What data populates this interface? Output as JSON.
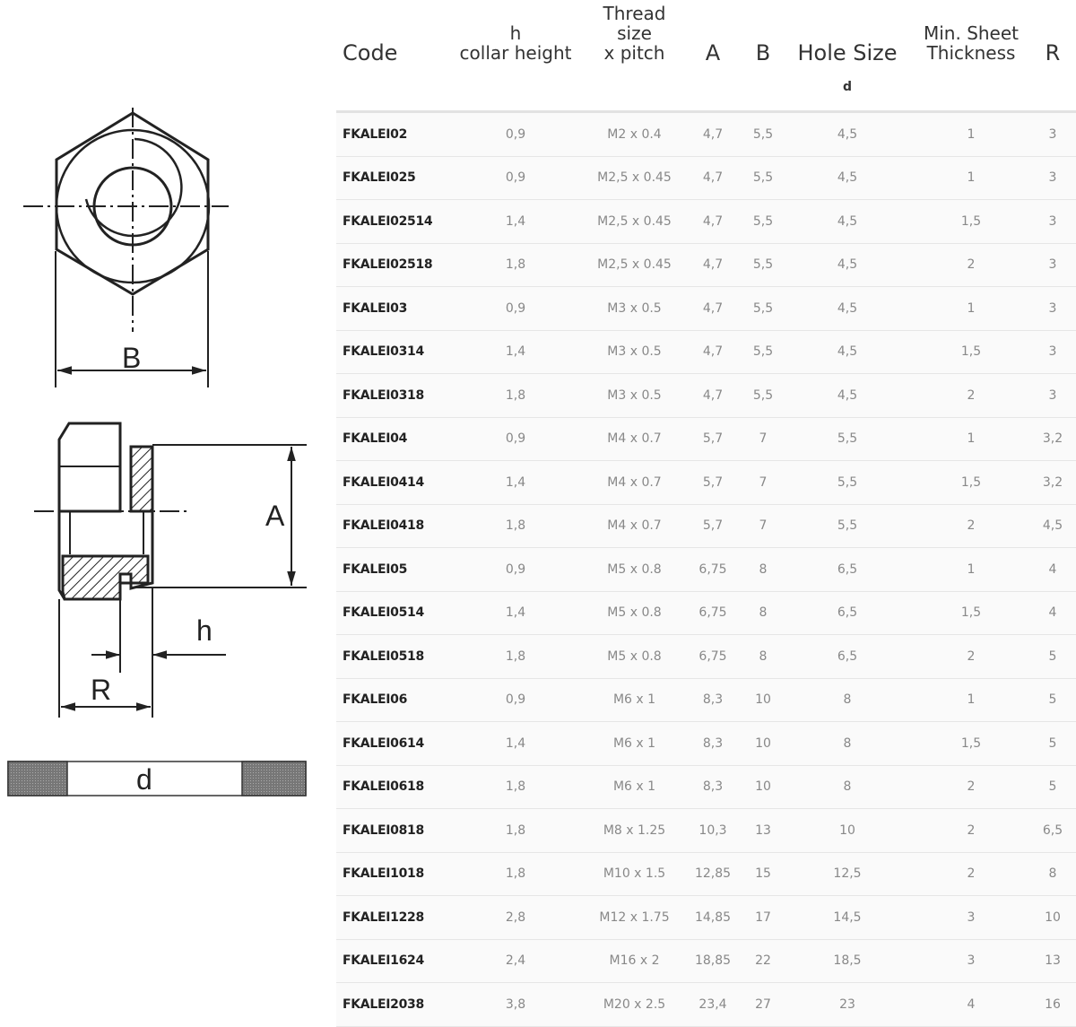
{
  "drawing": {
    "labels": {
      "b": "B",
      "a": "A",
      "h": "h",
      "r": "R",
      "d": "d"
    }
  },
  "table": {
    "headers": {
      "code": "Code",
      "h_line1": "h",
      "h_line2": "collar height",
      "thread_line1": "Thread",
      "thread_line2": "size",
      "thread_line3": "x pitch",
      "a": "A",
      "b": "B",
      "hole": "Hole Size",
      "hole_sub": "d",
      "min_line1": "Min. Sheet",
      "min_line2": "Thickness",
      "r": "R"
    },
    "rows": [
      [
        "FKALEI02",
        "0,9",
        "M2 x 0.4",
        "4,7",
        "5,5",
        "4,5",
        "1",
        "3"
      ],
      [
        "FKALEI025",
        "0,9",
        "M2,5 x 0.45",
        "4,7",
        "5,5",
        "4,5",
        "1",
        "3"
      ],
      [
        "FKALEI02514",
        "1,4",
        "M2,5 x 0.45",
        "4,7",
        "5,5",
        "4,5",
        "1,5",
        "3"
      ],
      [
        "FKALEI02518",
        "1,8",
        "M2,5 x 0.45",
        "4,7",
        "5,5",
        "4,5",
        "2",
        "3"
      ],
      [
        "FKALEI03",
        "0,9",
        "M3 x 0.5",
        "4,7",
        "5,5",
        "4,5",
        "1",
        "3"
      ],
      [
        "FKALEI0314",
        "1,4",
        "M3 x 0.5",
        "4,7",
        "5,5",
        "4,5",
        "1,5",
        "3"
      ],
      [
        "FKALEI0318",
        "1,8",
        "M3 x 0.5",
        "4,7",
        "5,5",
        "4,5",
        "2",
        "3"
      ],
      [
        "FKALEI04",
        "0,9",
        "M4 x 0.7",
        "5,7",
        "7",
        "5,5",
        "1",
        "3,2"
      ],
      [
        "FKALEI0414",
        "1,4",
        "M4 x 0.7",
        "5,7",
        "7",
        "5,5",
        "1,5",
        "3,2"
      ],
      [
        "FKALEI0418",
        "1,8",
        "M4 x 0.7",
        "5,7",
        "7",
        "5,5",
        "2",
        "4,5"
      ],
      [
        "FKALEI05",
        "0,9",
        "M5 x 0.8",
        "6,75",
        "8",
        "6,5",
        "1",
        "4"
      ],
      [
        "FKALEI0514",
        "1,4",
        "M5 x 0.8",
        "6,75",
        "8",
        "6,5",
        "1,5",
        "4"
      ],
      [
        "FKALEI0518",
        "1,8",
        "M5 x 0.8",
        "6,75",
        "8",
        "6,5",
        "2",
        "5"
      ],
      [
        "FKALEI06",
        "0,9",
        "M6 x 1",
        "8,3",
        "10",
        "8",
        "1",
        "5"
      ],
      [
        "FKALEI0614",
        "1,4",
        "M6 x 1",
        "8,3",
        "10",
        "8",
        "1,5",
        "5"
      ],
      [
        "FKALEI0618",
        "1,8",
        "M6 x 1",
        "8,3",
        "10",
        "8",
        "2",
        "5"
      ],
      [
        "FKALEI0818",
        "1,8",
        "M8 x 1.25",
        "10,3",
        "13",
        "10",
        "2",
        "6,5"
      ],
      [
        "FKALEI1018",
        "1,8",
        "M10 x 1.5",
        "12,85",
        "15",
        "12,5",
        "2",
        "8"
      ],
      [
        "FKALEI1228",
        "2,8",
        "M12 x 1.75",
        "14,85",
        "17",
        "14,5",
        "3",
        "10"
      ],
      [
        "FKALEI1624",
        "2,4",
        "M16 x 2",
        "18,85",
        "22",
        "18,5",
        "3",
        "13"
      ],
      [
        "FKALEI2038",
        "3,8",
        "M20 x 2.5",
        "23,4",
        "27",
        "23",
        "4",
        "16"
      ]
    ]
  }
}
